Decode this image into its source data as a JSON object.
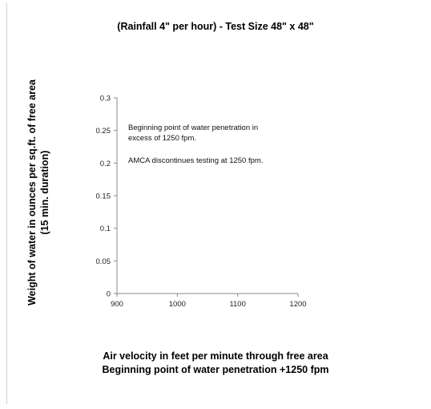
{
  "chart_data": {
    "type": "scatter",
    "title": "(Rainfall 4\" per hour) - Test Size 48\" x 48\"",
    "ylabel": [
      "Weight of water in ounces per sq.ft. of free area",
      "(15 min. duration)"
    ],
    "xlabel": [
      "Air velocity in feet per minute through free area",
      "Beginning point of water penetration +1250 fpm"
    ],
    "xlim": [
      900,
      1200
    ],
    "ylim": [
      0,
      0.3
    ],
    "x_ticks": [
      900,
      1000,
      1100,
      1200
    ],
    "y_ticks": [
      0,
      0.05,
      0.1,
      0.15,
      0.2,
      0.25,
      0.3
    ],
    "y_tick_labels": [
      "0",
      "0.05",
      "0.1",
      "0.15",
      "0.2",
      "0.25",
      "0.3"
    ],
    "series": [],
    "annotations": [
      {
        "lines": [
          "Beginning point of water penetration  in",
          "excess of 1250 fpm."
        ]
      },
      {
        "lines": [
          "AMCA discontinues testing at 1250 fpm."
        ]
      }
    ],
    "grid": false
  }
}
